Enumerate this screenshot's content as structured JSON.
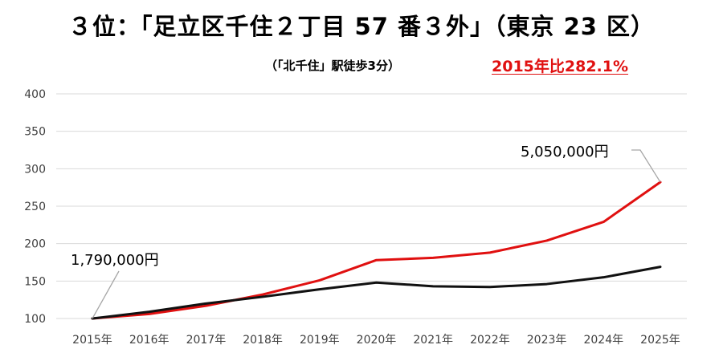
{
  "chart_data": {
    "type": "line",
    "title": "３位：「足立区千住２丁目 57 番３外」（東京 23 区）",
    "subtitle": "（「北千住」駅徒歩3分）",
    "badge": "2015年比282.1%",
    "categories": [
      "2015年",
      "2016年",
      "2017年",
      "2018年",
      "2019年",
      "2020年",
      "2021年",
      "2022年",
      "2023年",
      "2024年",
      "2025年"
    ],
    "ylim": [
      100,
      400
    ],
    "yticks": [
      100,
      150,
      200,
      250,
      300,
      350,
      400
    ],
    "grid": true,
    "series": [
      {
        "color": "#e01010",
        "values": [
          100,
          106,
          117,
          132,
          151,
          178,
          181,
          188,
          204,
          229,
          282.1
        ]
      },
      {
        "color": "#111111",
        "values": [
          100,
          109,
          120,
          129,
          139,
          148,
          143,
          142,
          146,
          155,
          169
        ]
      }
    ],
    "annotations": [
      {
        "text": "1,790,000円",
        "series": 0,
        "index": 0
      },
      {
        "text": "5,050,000円",
        "series": 0,
        "index": 10
      }
    ]
  }
}
